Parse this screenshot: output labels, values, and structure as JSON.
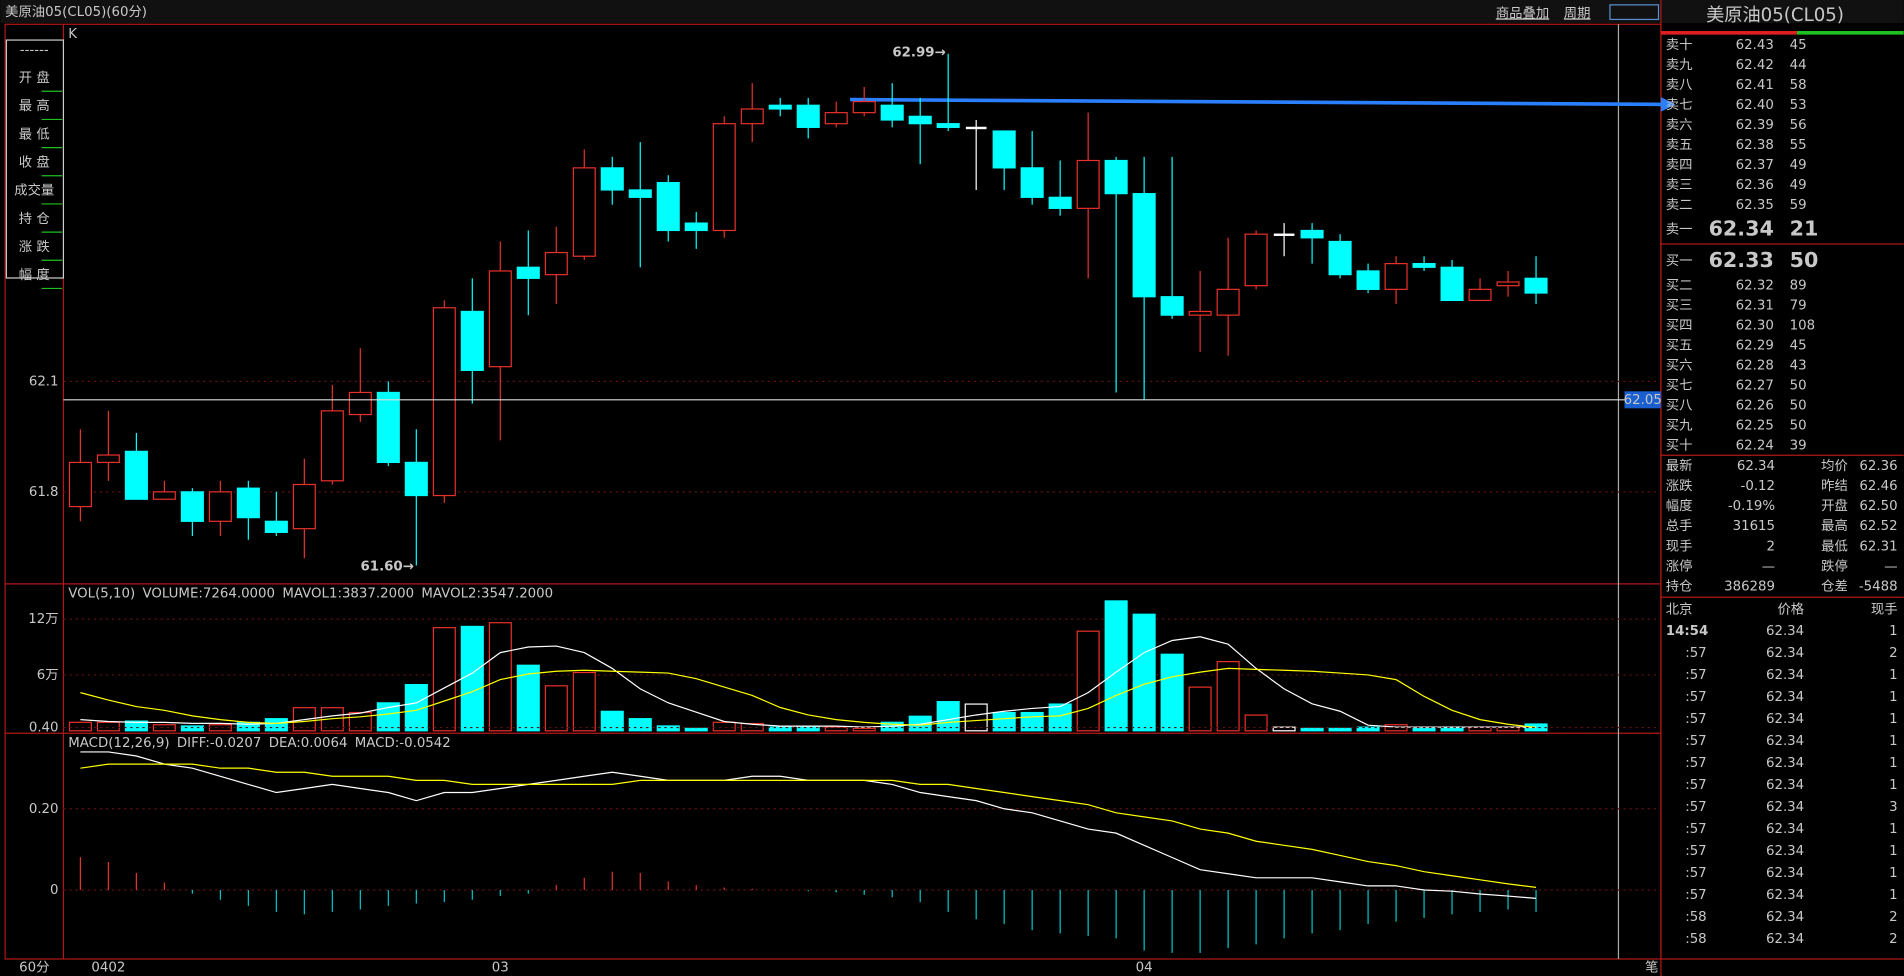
{
  "window_title": "美原油05(CL05)(60分)",
  "toolbar": [
    "商品叠加",
    "周期"
  ],
  "legend_box": [
    "------",
    "开  盘",
    "最  高",
    "最  低",
    "收  盘",
    "成交量",
    "持  仓",
    "涨  跌",
    "幅  度"
  ],
  "period_label": "60分",
  "chart_data": [
    {
      "type": "candlestick",
      "label": "K",
      "up_color": "#e8302c",
      "down_color": "#00ffff",
      "flat_color": "#ffffff",
      "categories": [
        null,
        "0402",
        null,
        null,
        null,
        null,
        null,
        null,
        null,
        null,
        null,
        null,
        null,
        null,
        null,
        "03",
        null,
        null,
        null,
        null,
        null,
        null,
        null,
        null,
        null,
        null,
        null,
        null,
        null,
        null,
        null,
        null,
        null,
        null,
        null,
        null,
        null,
        null,
        "04",
        null,
        null,
        null,
        null,
        null,
        null,
        null,
        null,
        null,
        null,
        null,
        null,
        null,
        null
      ],
      "open": [
        61.76,
        61.88,
        61.91,
        61.78,
        61.8,
        61.72,
        61.81,
        61.72,
        61.7,
        61.83,
        62.01,
        62.07,
        61.88,
        61.79,
        62.29,
        62.14,
        62.41,
        62.39,
        62.44,
        62.68,
        62.62,
        62.64,
        62.53,
        62.51,
        62.8,
        62.85,
        62.85,
        62.8,
        62.83,
        62.85,
        62.82,
        62.8,
        62.79,
        62.78,
        62.68,
        62.6,
        62.57,
        62.7,
        62.61,
        62.33,
        62.28,
        62.28,
        62.36,
        62.5,
        62.51,
        62.48,
        62.4,
        62.35,
        62.42,
        62.41,
        62.32,
        62.36,
        62.38
      ],
      "high": [
        61.97,
        62.02,
        61.96,
        61.83,
        61.81,
        61.83,
        61.83,
        61.8,
        61.89,
        62.09,
        62.19,
        62.1,
        61.97,
        62.32,
        62.38,
        62.48,
        62.51,
        62.52,
        62.73,
        62.71,
        62.75,
        62.66,
        62.56,
        62.82,
        62.91,
        62.87,
        62.87,
        62.86,
        62.9,
        62.91,
        62.87,
        62.99,
        62.81,
        62.78,
        62.78,
        62.7,
        62.83,
        62.71,
        62.71,
        62.71,
        62.4,
        62.49,
        62.51,
        62.53,
        62.53,
        62.5,
        62.42,
        62.44,
        62.44,
        62.43,
        62.38,
        62.4,
        62.44
      ],
      "low": [
        61.72,
        61.83,
        61.78,
        61.78,
        61.68,
        61.68,
        61.67,
        61.68,
        61.62,
        61.82,
        61.99,
        61.87,
        61.6,
        61.77,
        62.04,
        61.94,
        62.28,
        62.31,
        62.43,
        62.58,
        62.41,
        62.48,
        62.46,
        62.49,
        62.75,
        62.82,
        62.76,
        62.79,
        62.82,
        62.79,
        62.69,
        62.78,
        62.62,
        62.62,
        62.58,
        62.55,
        62.38,
        62.07,
        62.05,
        62.27,
        62.18,
        62.17,
        62.35,
        62.44,
        62.42,
        62.38,
        62.34,
        62.31,
        62.4,
        62.32,
        62.32,
        62.33,
        62.31
      ],
      "close": [
        61.88,
        61.9,
        61.78,
        61.8,
        61.72,
        61.8,
        61.73,
        61.69,
        61.82,
        62.02,
        62.07,
        61.88,
        61.79,
        62.3,
        62.13,
        62.4,
        62.38,
        62.45,
        62.68,
        62.62,
        62.6,
        62.51,
        62.51,
        62.8,
        62.84,
        62.84,
        62.79,
        62.83,
        62.86,
        62.81,
        62.8,
        62.79,
        62.79,
        62.68,
        62.6,
        62.57,
        62.7,
        62.61,
        62.33,
        62.28,
        62.29,
        62.35,
        62.5,
        62.5,
        62.49,
        62.39,
        62.35,
        62.42,
        62.41,
        62.32,
        62.35,
        62.37,
        62.34
      ],
      "extreme_labels": {
        "high": "62.99→",
        "low": "61.60→"
      },
      "crosshair_price": 62.05,
      "ylim": [
        61.55,
        63.07
      ],
      "yticks": [
        61.8,
        62.1
      ]
    },
    {
      "type": "bar",
      "header": [
        {
          "text": "VOL(5,10)",
          "color": "#c8c8c8"
        },
        {
          "text": "VOLUME:7264.0000",
          "color": "#ffffff"
        },
        {
          "text": "MAVOL1:3837.2000",
          "color": "#ffffff"
        },
        {
          "text": "MAVOL2:3547.2000",
          "color": "#ffff00"
        }
      ],
      "values": [
        9100,
        9100,
        10400,
        6500,
        5200,
        6500,
        9100,
        13000,
        24800,
        24800,
        19600,
        30000,
        49600,
        110800,
        112100,
        116100,
        70400,
        48300,
        62600,
        20900,
        13000,
        5200,
        2600,
        9100,
        7800,
        3900,
        3900,
        3900,
        2600,
        9100,
        15600,
        31300,
        28700,
        19600,
        19600,
        28700,
        107000,
        139500,
        125200,
        82200,
        46900,
        74300,
        16900,
        3900,
        2600,
        2600,
        3900,
        6500,
        2600,
        3900,
        3900,
        3900,
        7264
      ],
      "lines": [
        {
          "color": "#ffffff",
          "values": [
            12000,
            10000,
            9000,
            9000,
            8000,
            8000,
            7000,
            8000,
            12000,
            16000,
            19000,
            25000,
            30000,
            46000,
            62000,
            84000,
            90000,
            91000,
            84000,
            67000,
            45000,
            30000,
            20000,
            10000,
            7000,
            5000,
            5000,
            5000,
            4000,
            5000,
            7000,
            12000,
            17000,
            21000,
            24000,
            26000,
            41000,
            63000,
            84000,
            97000,
            101000,
            93000,
            67000,
            45000,
            29000,
            21000,
            6000,
            4000,
            4000,
            4000,
            4000,
            4000,
            3837.2
          ]
        },
        {
          "color": "#ffff00",
          "values": [
            41000,
            33000,
            26000,
            22000,
            16000,
            12000,
            9000,
            8000,
            10000,
            13000,
            15000,
            18000,
            22000,
            32000,
            42000,
            55000,
            61000,
            64000,
            65000,
            64000,
            63000,
            62000,
            56000,
            47000,
            38000,
            25000,
            17000,
            12000,
            9000,
            7000,
            6000,
            9000,
            11000,
            13000,
            15000,
            16000,
            24000,
            38000,
            50000,
            58000,
            63000,
            67000,
            66000,
            65000,
            64000,
            62000,
            60000,
            55000,
            37000,
            22000,
            12000,
            7000,
            3547.2
          ]
        }
      ],
      "ylim": [
        0,
        157800
      ],
      "yticks": [
        {
          "value": 120000,
          "label": "12万"
        },
        {
          "value": 60000,
          "label": "6万"
        }
      ]
    },
    {
      "type": "macd",
      "header": [
        {
          "text": "MACD(12,26,9)",
          "color": "#c8c8c8"
        },
        {
          "text": "DIFF:-0.0207",
          "color": "#ffffff"
        },
        {
          "text": "DEA:0.0064",
          "color": "#ffff00"
        },
        {
          "text": "MACD:-0.0542",
          "color": "#c8c8c8"
        }
      ],
      "diff": [
        0.34,
        0.34,
        0.33,
        0.31,
        0.3,
        0.28,
        0.26,
        0.24,
        0.25,
        0.26,
        0.25,
        0.24,
        0.22,
        0.24,
        0.24,
        0.25,
        0.26,
        0.27,
        0.28,
        0.29,
        0.28,
        0.27,
        0.27,
        0.27,
        0.28,
        0.28,
        0.27,
        0.27,
        0.27,
        0.26,
        0.24,
        0.23,
        0.22,
        0.2,
        0.19,
        0.17,
        0.15,
        0.14,
        0.11,
        0.08,
        0.05,
        0.04,
        0.03,
        0.03,
        0.03,
        0.02,
        0.01,
        0.01,
        0.0,
        -0.003,
        -0.01,
        -0.015,
        -0.0207
      ],
      "dea": [
        0.3,
        0.31,
        0.31,
        0.31,
        0.31,
        0.3,
        0.3,
        0.29,
        0.29,
        0.28,
        0.28,
        0.28,
        0.27,
        0.27,
        0.26,
        0.26,
        0.26,
        0.26,
        0.26,
        0.26,
        0.27,
        0.27,
        0.27,
        0.27,
        0.27,
        0.27,
        0.27,
        0.27,
        0.27,
        0.27,
        0.26,
        0.26,
        0.25,
        0.24,
        0.23,
        0.22,
        0.21,
        0.19,
        0.18,
        0.17,
        0.15,
        0.14,
        0.12,
        0.11,
        0.1,
        0.085,
        0.07,
        0.06,
        0.045,
        0.035,
        0.025,
        0.015,
        0.0064
      ],
      "macd": [
        0.081,
        0.069,
        0.042,
        0.018,
        -0.009,
        -0.024,
        -0.039,
        -0.054,
        -0.06,
        -0.054,
        -0.048,
        -0.039,
        -0.033,
        -0.03,
        -0.024,
        -0.015,
        -0.009,
        0.012,
        0.03,
        0.045,
        0.042,
        0.021,
        0.012,
        0.006,
        0.003,
        0,
        -0.003,
        -0.006,
        -0.012,
        -0.018,
        -0.03,
        -0.054,
        -0.072,
        -0.084,
        -0.099,
        -0.107,
        -0.113,
        -0.119,
        -0.149,
        -0.155,
        -0.155,
        -0.143,
        -0.134,
        -0.119,
        -0.107,
        -0.099,
        -0.084,
        -0.078,
        -0.069,
        -0.06,
        -0.054,
        -0.048,
        -0.0542
      ],
      "diff_color": "#ffffff",
      "dea_color": "#ffff00",
      "pos_color": "#e8302c",
      "neg_color": "#00c8c8",
      "ylim": [
        -0.17,
        0.41
      ],
      "yticks": [
        {
          "value": 0.4,
          "label": "0.40"
        },
        {
          "value": 0.2,
          "label": "0.20"
        },
        0
      ]
    }
  ],
  "quote": {
    "title": "美原油05(CL05)",
    "asks": [
      {
        "label": "卖十",
        "price": "62.43",
        "volume": "45"
      },
      {
        "label": "卖九",
        "price": "62.42",
        "volume": "44"
      },
      {
        "label": "卖八",
        "price": "62.41",
        "volume": "58"
      },
      {
        "label": "卖七",
        "price": "62.40",
        "volume": "53"
      },
      {
        "label": "卖六",
        "price": "62.39",
        "volume": "56"
      },
      {
        "label": "卖五",
        "price": "62.38",
        "volume": "55"
      },
      {
        "label": "卖四",
        "price": "62.37",
        "volume": "49"
      },
      {
        "label": "卖三",
        "price": "62.36",
        "volume": "49"
      },
      {
        "label": "卖二",
        "price": "62.35",
        "volume": "59"
      },
      {
        "label": "卖一",
        "price": "62.34",
        "volume": "21"
      }
    ],
    "bids": [
      {
        "label": "买一",
        "price": "62.33",
        "volume": "50"
      },
      {
        "label": "买二",
        "price": "62.32",
        "volume": "89"
      },
      {
        "label": "买三",
        "price": "62.31",
        "volume": "79"
      },
      {
        "label": "买四",
        "price": "62.30",
        "volume": "108"
      },
      {
        "label": "买五",
        "price": "62.29",
        "volume": "45"
      },
      {
        "label": "买六",
        "price": "62.28",
        "volume": "43"
      },
      {
        "label": "买七",
        "price": "62.27",
        "volume": "50"
      },
      {
        "label": "买八",
        "price": "62.26",
        "volume": "50"
      },
      {
        "label": "买九",
        "price": "62.25",
        "volume": "50"
      },
      {
        "label": "买十",
        "price": "62.24",
        "volume": "39"
      }
    ],
    "stats": [
      {
        "l1": "最新",
        "v1": "62.34",
        "c1": "#32e632",
        "l2": "均价",
        "v2": "62.36",
        "c2": "#32e632"
      },
      {
        "l1": "涨跌",
        "v1": "-0.12",
        "c1": "#32e632",
        "l2": "昨结",
        "v2": "62.46",
        "c2": "#ffffff"
      },
      {
        "l1": "幅度",
        "v1": "-0.19%",
        "c1": "#32e632",
        "l2": "开盘",
        "v2": "62.50",
        "c2": "#ff4040"
      },
      {
        "l1": "总手",
        "v1": "31615",
        "c1": "#ffff00",
        "l2": "最高",
        "v2": "62.52",
        "c2": "#ff4040"
      },
      {
        "l1": "现手",
        "v1": "2",
        "c1": "#ffff00",
        "l2": "最低",
        "v2": "62.31",
        "c2": "#32e632"
      },
      {
        "l1": "涨停",
        "v1": "—",
        "c1": "#c8c8c8",
        "l2": "跌停",
        "v2": "—",
        "c2": "#c8c8c8"
      },
      {
        "l1": "持仓",
        "v1": "386289",
        "c1": "#ffff00",
        "l2": "仓差",
        "v2": "-5488",
        "c2": "#ffff00"
      }
    ],
    "trades": {
      "header": [
        "北京",
        "价格",
        "现手"
      ],
      "rows": [
        {
          "time": "14:54",
          "price": "62.34",
          "volume": "1",
          "color": "#32e632"
        },
        {
          "time": ":57",
          "price": "62.34",
          "volume": "2",
          "color": "#32e632"
        },
        {
          "time": ":57",
          "price": "62.34",
          "volume": "1",
          "color": "#32e632"
        },
        {
          "time": ":57",
          "price": "62.34",
          "volume": "1",
          "color": "#32e632"
        },
        {
          "time": ":57",
          "price": "62.34",
          "volume": "1",
          "color": "#32e632"
        },
        {
          "time": ":57",
          "price": "62.34",
          "volume": "1",
          "color": "#32e632"
        },
        {
          "time": ":57",
          "price": "62.34",
          "volume": "1",
          "color": "#32e632"
        },
        {
          "time": ":57",
          "price": "62.34",
          "volume": "1",
          "color": "#32e632"
        },
        {
          "time": ":57",
          "price": "62.34",
          "volume": "3",
          "color": "#32e632"
        },
        {
          "time": ":57",
          "price": "62.34",
          "volume": "1",
          "color": "#32e632"
        },
        {
          "time": ":57",
          "price": "62.34",
          "volume": "1",
          "color": "#32e632"
        },
        {
          "time": ":57",
          "price": "62.34",
          "volume": "1",
          "color": "#32e632"
        },
        {
          "time": ":57",
          "price": "62.34",
          "volume": "1",
          "color": "#ff4040"
        },
        {
          "time": ":58",
          "price": "62.34",
          "volume": "2",
          "color": "#ff4040"
        },
        {
          "time": ":58",
          "price": "62.34",
          "volume": "2",
          "color": "#ff4040"
        }
      ]
    },
    "footer": "笔"
  }
}
